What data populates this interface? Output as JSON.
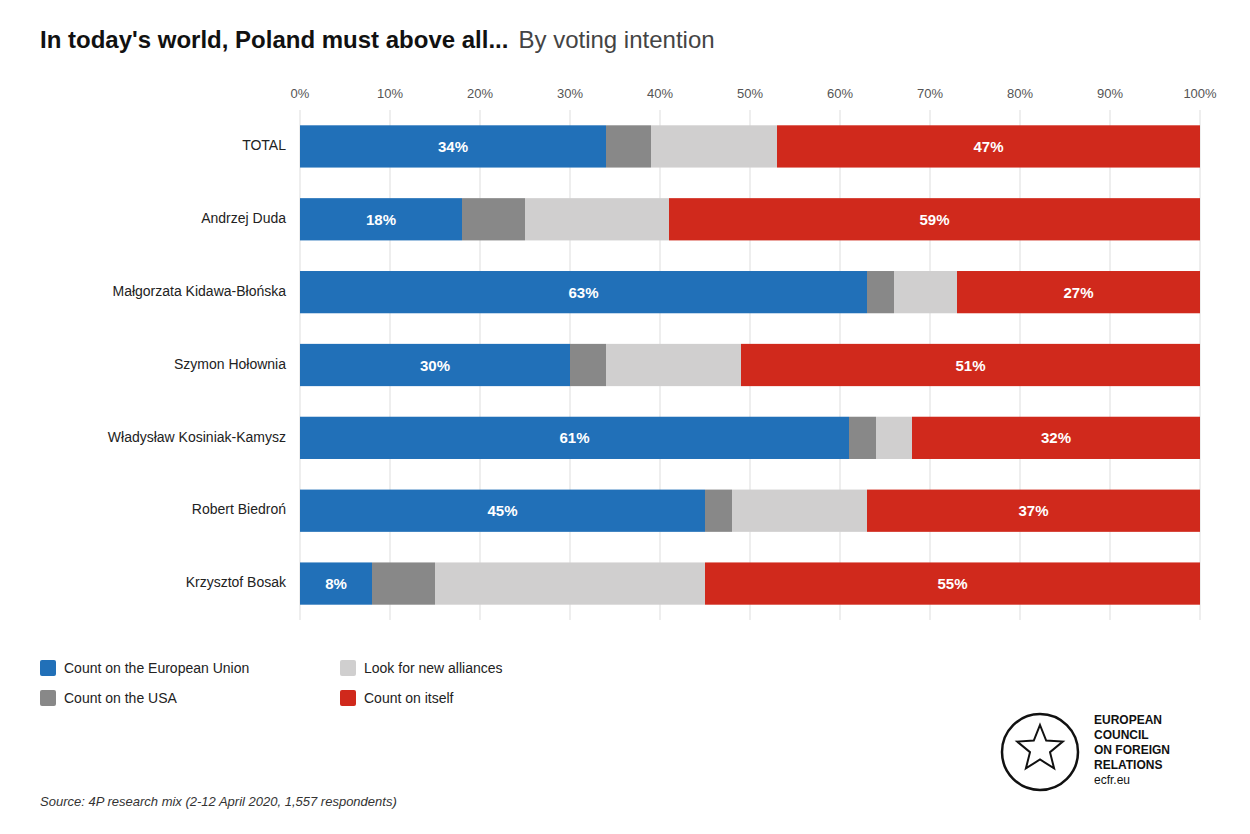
{
  "chart_data": {
    "type": "bar",
    "orientation": "horizontal",
    "stacked": true,
    "title": "In today's world, Poland must above all...",
    "subtitle": "By voting intention",
    "source": "Source: 4P research mix (2-12 April 2020, 1,557 respondents)",
    "annotations": [
      "EUROPEAN",
      "COUNCIL",
      "ON FOREIGN",
      "RELATIONS",
      "ecfr.eu"
    ],
    "categories": [
      "TOTAL",
      "Andrzej Duda",
      "Małgorzata Kidawa-Błońska",
      "Szymon Hołownia",
      "Władysław Kosiniak-Kamysz",
      "Robert Biedroń",
      "Krzysztof Bosak"
    ],
    "series": [
      {
        "name": "Count on the European Union",
        "color": "#2170B8",
        "values": [
          34,
          18,
          63,
          30,
          61,
          45,
          8
        ],
        "value_labels": [
          "34%",
          "18%",
          "63%",
          "30%",
          "61%",
          "45%",
          "8%"
        ]
      },
      {
        "name": "Count on the USA",
        "color": "#888888",
        "values": [
          5,
          7,
          3,
          4,
          3,
          3,
          7
        ]
      },
      {
        "name": "Look for new alliances",
        "color": "#D0CFCF",
        "values": [
          14,
          16,
          7,
          15,
          4,
          15,
          30
        ]
      },
      {
        "name": "Count on itself",
        "color": "#D0291C",
        "values": [
          47,
          59,
          27,
          51,
          32,
          37,
          55
        ],
        "value_labels": [
          "47%",
          "59%",
          "27%",
          "51%",
          "32%",
          "37%",
          "55%"
        ]
      }
    ],
    "xlim": [
      0,
      100
    ],
    "xticks": [
      {
        "value": 0,
        "label": "0%"
      },
      {
        "value": 10,
        "label": "10%"
      },
      {
        "value": 20,
        "label": "20%"
      },
      {
        "value": 30,
        "label": "30%"
      },
      {
        "value": 40,
        "label": "40%"
      },
      {
        "value": 50,
        "label": "50%"
      },
      {
        "value": 60,
        "label": "60%"
      },
      {
        "value": 70,
        "label": "70%"
      },
      {
        "value": 80,
        "label": "80%"
      },
      {
        "value": 90,
        "label": "90%"
      },
      {
        "value": 100,
        "label": "100%"
      }
    ],
    "grid": true,
    "data_labels": true,
    "legend": "bottom-left"
  }
}
